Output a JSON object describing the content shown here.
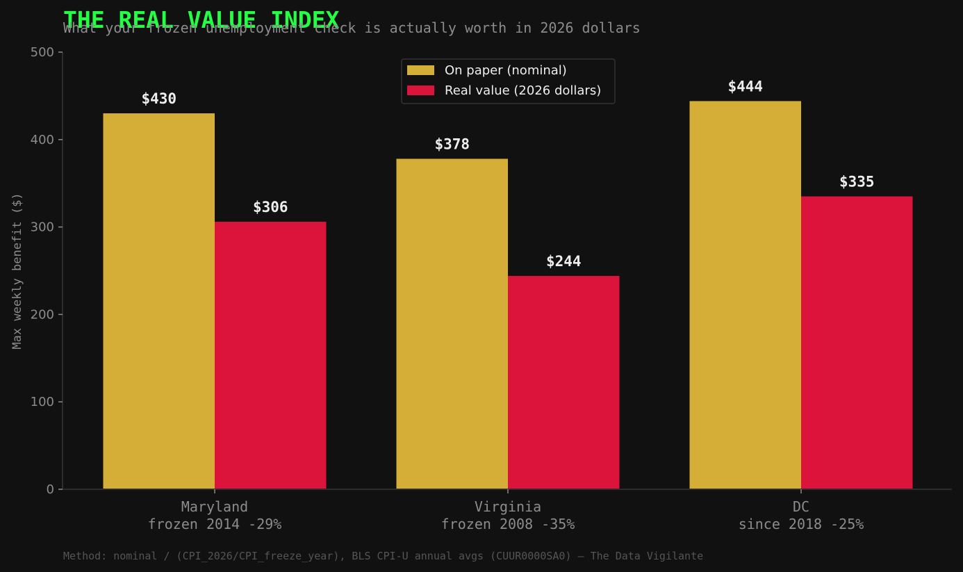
{
  "chart_data": {
    "type": "bar",
    "title": "THE REAL VALUE INDEX",
    "subtitle": "What your frozen unemployment check is actually worth in 2026 dollars",
    "xlabel": "",
    "ylabel": "Max weekly benefit ($)",
    "ylim": [
      0,
      500
    ],
    "yticks": [
      0,
      100,
      200,
      300,
      400,
      500
    ],
    "categories": [
      [
        "Maryland",
        "frozen 2014  -29%"
      ],
      [
        "Virginia",
        "frozen 2008  -35%"
      ],
      [
        "DC",
        "since 2018  -25%"
      ]
    ],
    "series": [
      {
        "name": "On paper (nominal)",
        "color": "#d4ae37",
        "values": [
          430,
          378,
          444
        ],
        "labels": [
          "$430",
          "$378",
          "$444"
        ]
      },
      {
        "name": "Real value (2026 dollars)",
        "color": "#dc143c",
        "values": [
          306,
          244,
          335
        ],
        "labels": [
          "$306",
          "$244",
          "$335"
        ]
      }
    ],
    "legend_position": "top-center",
    "grid": false,
    "footer": "Method: nominal / (CPI_2026/CPI_freeze_year), BLS CPI-U annual avgs (CUUR0000SA0)  —  The Data Vigilante"
  }
}
